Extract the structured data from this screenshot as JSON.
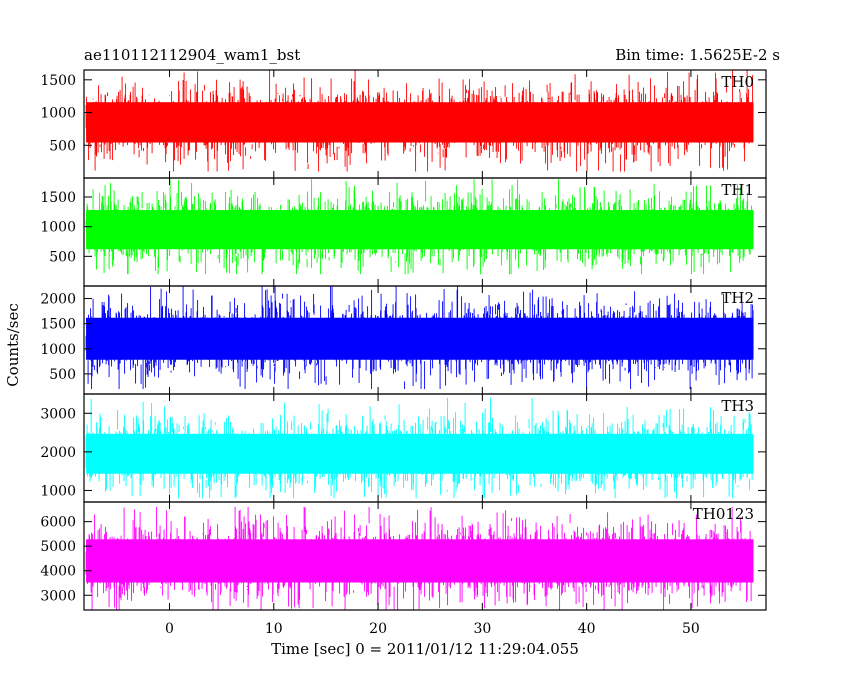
{
  "chart_data": {
    "type": "line",
    "title": "ae110112112904_wam1_bst",
    "subtitle": "Bin time: 1.5625E-2 s",
    "xlabel": "Time [sec] 0 = 2011/01/12 11:29:04.055",
    "ylabel": "Counts/sec",
    "xlim": [
      -8.2,
      57.2
    ],
    "x_data_range": [
      -8,
      56
    ],
    "x_ticks": [
      0,
      10,
      20,
      30,
      40,
      50
    ],
    "x_tick_labels": [
      "0",
      "10",
      "20",
      "30",
      "40",
      "50"
    ],
    "grid": false,
    "panels": [
      {
        "name": "TH0",
        "color": "#ff0000",
        "ylim": [
          0,
          1650
        ],
        "y_ticks": [
          500,
          1000,
          1500
        ],
        "y_tick_labels": [
          "500",
          "1000",
          "1500"
        ],
        "mean": 850,
        "sd": 280,
        "y_min": 100,
        "y_max": 1650
      },
      {
        "name": "TH1",
        "color": "#00ff00",
        "ylim": [
          0,
          1820
        ],
        "y_ticks": [
          500,
          1000,
          1500
        ],
        "y_tick_labels": [
          "500",
          "1000",
          "1500"
        ],
        "mean": 950,
        "sd": 300,
        "y_min": 200,
        "y_max": 1800
      },
      {
        "name": "TH2",
        "color": "#0000ff",
        "ylim": [
          100,
          2250
        ],
        "y_ticks": [
          500,
          1000,
          1500,
          2000
        ],
        "y_tick_labels": [
          "500",
          "1000",
          "1500",
          "2000"
        ],
        "mean": 1200,
        "sd": 380,
        "y_min": 200,
        "y_max": 2250
      },
      {
        "name": "TH3",
        "color": "#00ffff",
        "ylim": [
          700,
          3500
        ],
        "y_ticks": [
          1000,
          2000,
          3000
        ],
        "y_tick_labels": [
          "1000",
          "2000",
          "3000"
        ],
        "mean": 1950,
        "sd": 470,
        "y_min": 800,
        "y_max": 3400
      },
      {
        "name": "TH0123",
        "color": "#ff00ff",
        "ylim": [
          2400,
          6800
        ],
        "y_ticks": [
          3000,
          4000,
          5000,
          6000
        ],
        "y_tick_labels": [
          "3000",
          "4000",
          "5000",
          "6000"
        ],
        "mean": 4400,
        "sd": 800,
        "y_min": 2400,
        "y_max": 6600
      }
    ]
  }
}
